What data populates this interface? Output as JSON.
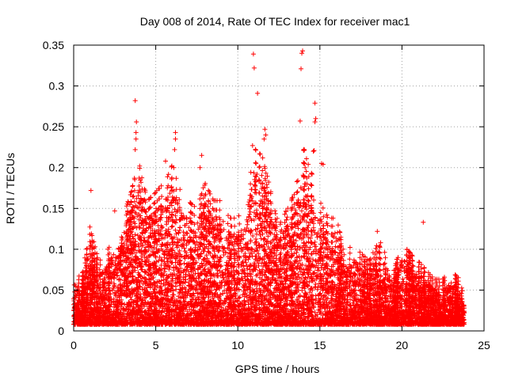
{
  "chart_data": {
    "type": "scatter",
    "title": "Day 008 of 2014, Rate Of TEC Index for receiver mac1",
    "xlabel": "GPS time / hours",
    "ylabel": "ROTI / TECUs",
    "xlim": [
      0,
      25
    ],
    "ylim": [
      0,
      0.35
    ],
    "grid": true,
    "marker": "+",
    "color": "#ff0000",
    "x_ticks": [
      0,
      5,
      10,
      15,
      20,
      25
    ],
    "x_tick_labels": [
      "0",
      "5",
      "10",
      "15",
      "20",
      "25"
    ],
    "y_ticks": [
      0,
      0.05,
      0.1,
      0.15,
      0.2,
      0.25,
      0.3,
      0.35
    ],
    "y_tick_labels": [
      "0",
      "0.05",
      "0.1",
      "0.15",
      "0.2",
      "0.25",
      "0.3",
      "0.35"
    ],
    "series": [
      {
        "name": "ROTI",
        "envelope_hours": [
          0,
          0.5,
          1.0,
          1.5,
          2.0,
          2.5,
          3.0,
          3.5,
          4.0,
          4.5,
          5.0,
          5.5,
          6.0,
          6.5,
          7.0,
          7.5,
          8.0,
          8.5,
          9.0,
          9.5,
          10.0,
          10.5,
          11.0,
          11.5,
          12.0,
          12.5,
          13.0,
          13.5,
          14.0,
          14.5,
          15.0,
          15.5,
          16.0,
          16.5,
          17.0,
          17.5,
          18.0,
          18.5,
          19.0,
          19.5,
          20.0,
          20.5,
          21.0,
          21.5,
          22.0,
          22.5,
          23.0,
          23.5,
          23.8
        ],
        "envelope_roti": [
          0.06,
          0.05,
          0.11,
          0.07,
          0.08,
          0.1,
          0.12,
          0.15,
          0.18,
          0.14,
          0.15,
          0.16,
          0.18,
          0.15,
          0.14,
          0.13,
          0.16,
          0.14,
          0.14,
          0.12,
          0.12,
          0.14,
          0.2,
          0.19,
          0.15,
          0.11,
          0.13,
          0.15,
          0.2,
          0.17,
          0.14,
          0.12,
          0.12,
          0.08,
          0.09,
          0.08,
          0.07,
          0.09,
          0.08,
          0.06,
          0.09,
          0.08,
          0.07,
          0.06,
          0.05,
          0.05,
          0.06,
          0.05,
          0.03
        ],
        "outliers": [
          [
            1.05,
            0.172
          ],
          [
            2.5,
            0.147
          ],
          [
            3.7,
            0.187
          ],
          [
            3.75,
            0.222
          ],
          [
            3.8,
            0.235
          ],
          [
            3.8,
            0.243
          ],
          [
            3.82,
            0.256
          ],
          [
            3.75,
            0.282
          ],
          [
            4.1,
            0.182
          ],
          [
            5.6,
            0.208
          ],
          [
            6.1,
            0.2
          ],
          [
            6.15,
            0.222
          ],
          [
            6.2,
            0.235
          ],
          [
            6.2,
            0.243
          ],
          [
            7.7,
            0.2
          ],
          [
            7.8,
            0.215
          ],
          [
            10.9,
            0.227
          ],
          [
            11.0,
            0.322
          ],
          [
            10.95,
            0.339
          ],
          [
            11.2,
            0.291
          ],
          [
            11.6,
            0.235
          ],
          [
            11.65,
            0.247
          ],
          [
            11.7,
            0.24
          ],
          [
            13.8,
            0.257
          ],
          [
            13.85,
            0.321
          ],
          [
            13.9,
            0.34
          ],
          [
            13.95,
            0.343
          ],
          [
            14.1,
            0.2
          ],
          [
            14.6,
            0.22
          ],
          [
            14.65,
            0.221
          ],
          [
            14.7,
            0.256
          ],
          [
            14.75,
            0.26
          ],
          [
            14.7,
            0.279
          ],
          [
            15.1,
            0.205
          ],
          [
            15.2,
            0.204
          ],
          [
            18.5,
            0.122
          ],
          [
            18.7,
            0.108
          ],
          [
            21.3,
            0.133
          ]
        ]
      }
    ]
  }
}
